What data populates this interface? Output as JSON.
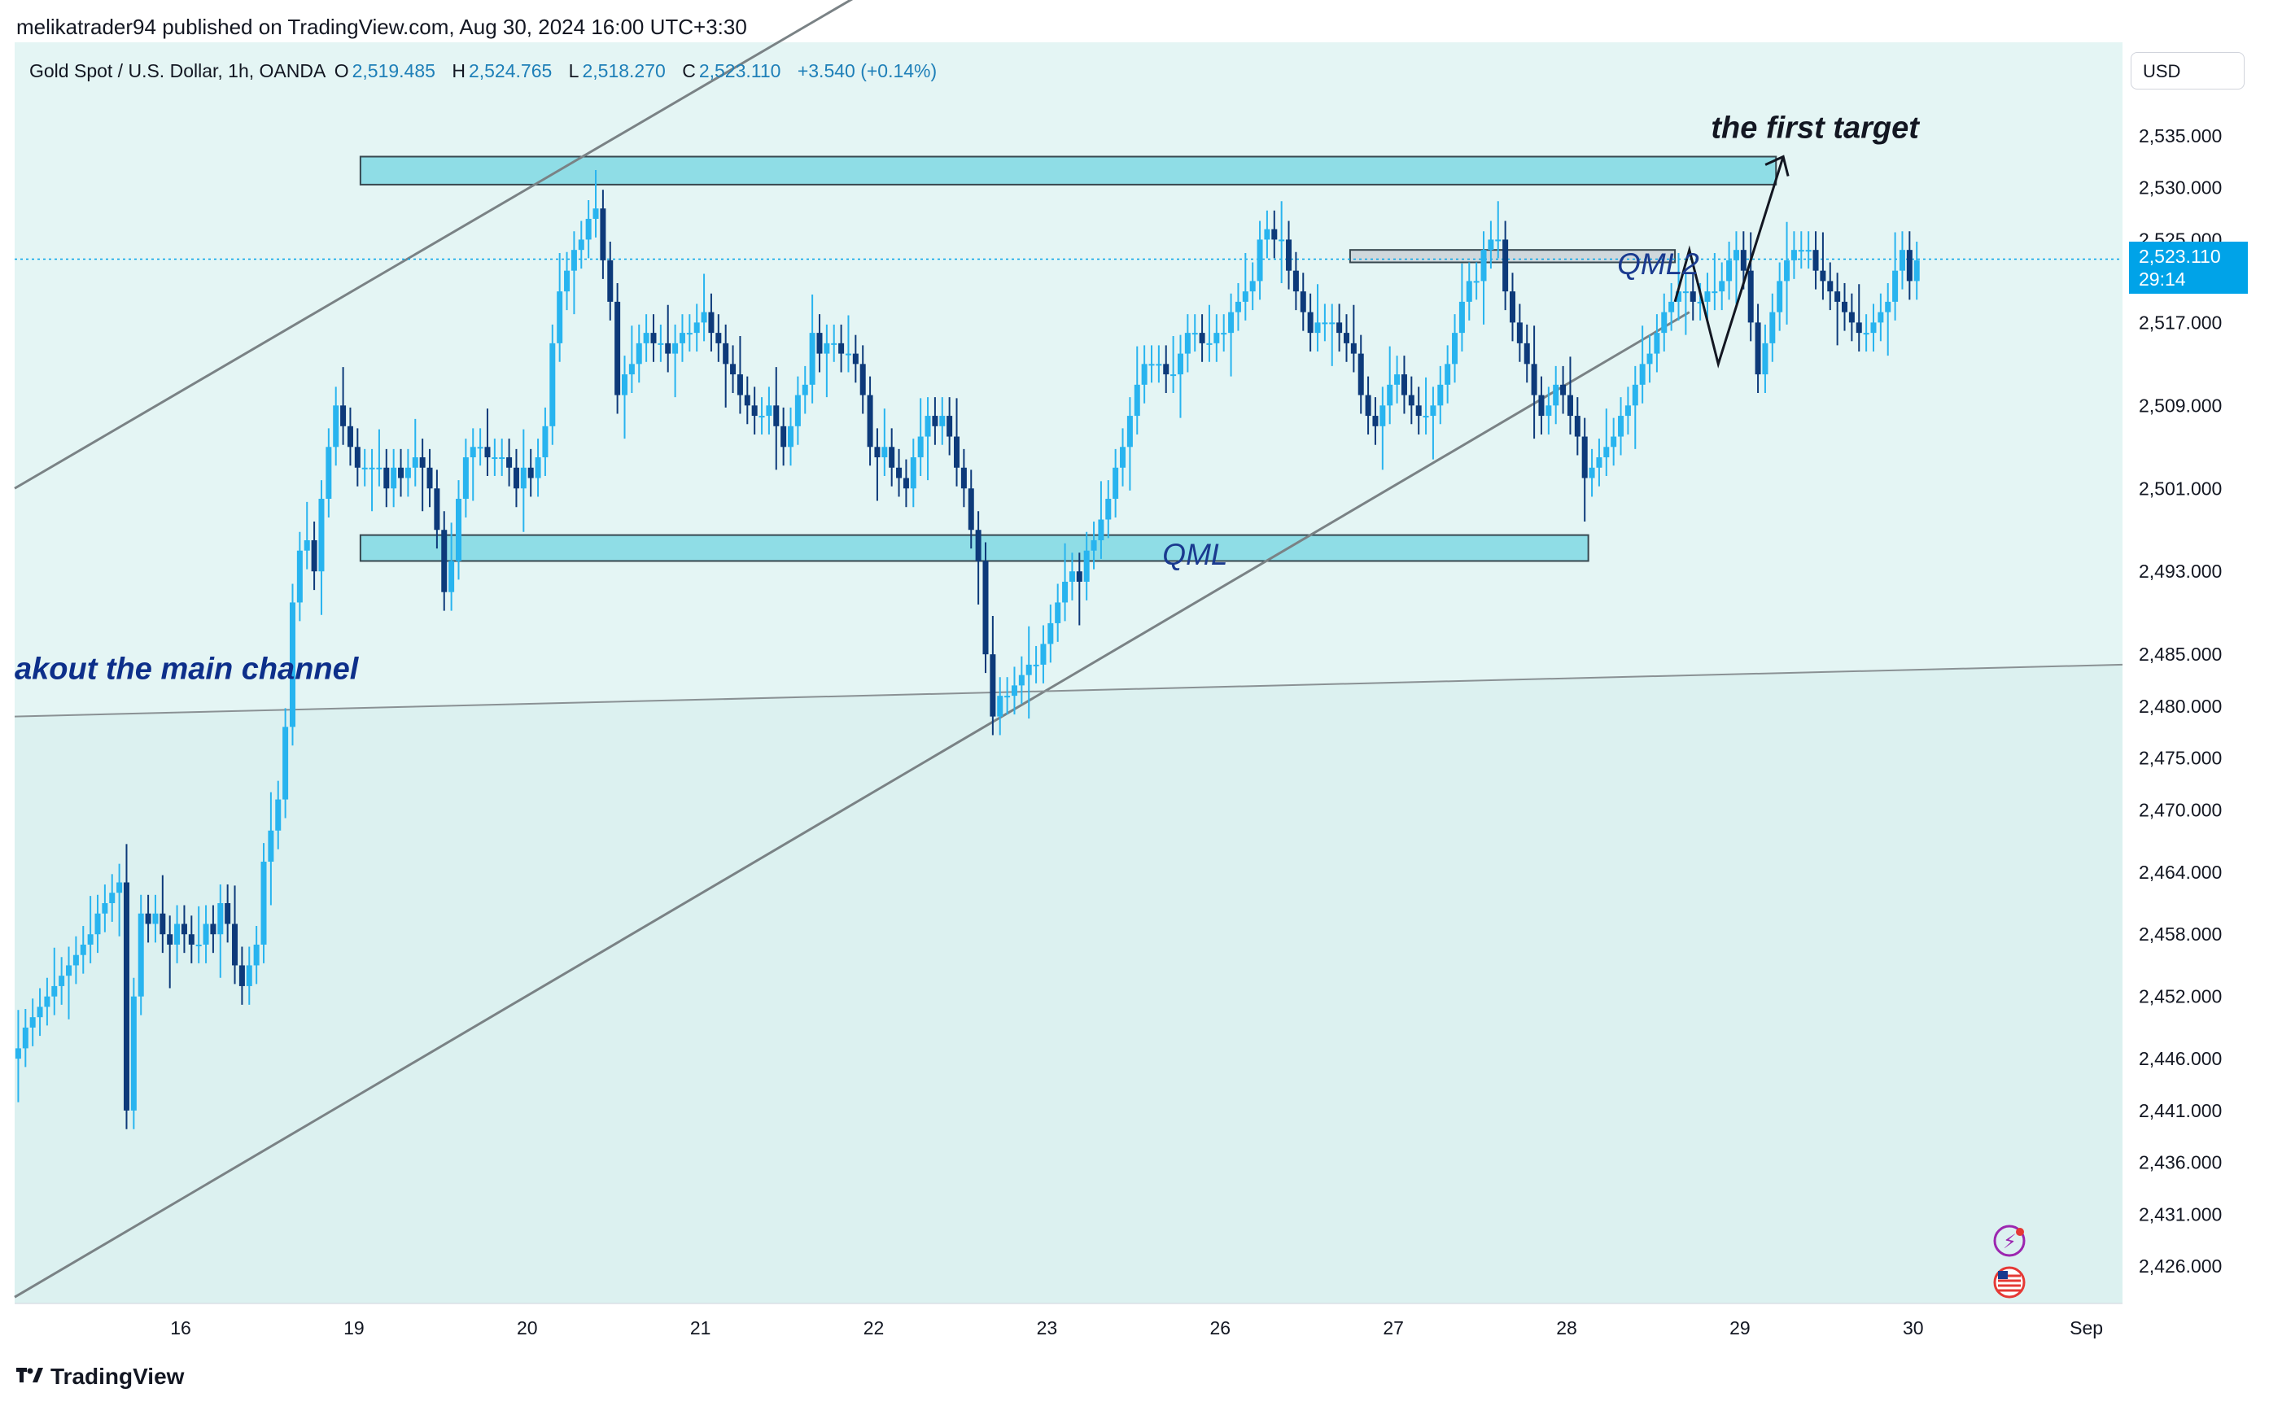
{
  "header": {
    "attribution": "melikatrader94 published on TradingView.com, Aug 30, 2024 16:00 UTC+3:30",
    "symbol": "Gold Spot / U.S. Dollar, 1h, OANDA",
    "open_label": "O",
    "open": "2,519.485",
    "high_label": "H",
    "high": "2,524.765",
    "low_label": "L",
    "low": "2,518.270",
    "close_label": "C",
    "close": "2,523.110",
    "change": "+3.540 (+0.14%)"
  },
  "price_scale": {
    "currency": "USD",
    "last_price": "2,523.110",
    "countdown": "29:14"
  },
  "footer": {
    "brand": "TradingView"
  },
  "colors": {
    "up": "#28b4ef",
    "down": "#0d3a7a",
    "zone": "#8fdde6",
    "background": "#e4f5f4"
  },
  "icons": [
    "flash-icon",
    "us-flag-icon",
    "tradingview-logo-icon"
  ],
  "chart_data": {
    "type": "candlestick",
    "title": "Gold Spot / U.S. Dollar, 1h, OANDA",
    "xlabel": "",
    "ylabel": "",
    "ylim": [
      2421,
      2541
    ],
    "y_ticks": [
      2535,
      2530,
      2525,
      2517,
      2509,
      2501,
      2493,
      2485,
      2480,
      2475,
      2470,
      2464,
      2458,
      2452,
      2446,
      2441,
      2436,
      2431,
      2426
    ],
    "y_tick_labels": [
      "2,535.000",
      "2,530.000",
      "2,525.000",
      "2,517.000",
      "2,509.000",
      "2,501.000",
      "2,493.000",
      "2,485.000",
      "2,480.000",
      "2,475.000",
      "2,470.000",
      "2,464.000",
      "2,458.000",
      "2,452.000",
      "2,446.000",
      "2,441.000",
      "2,436.000",
      "2,431.000",
      "2,426.000"
    ],
    "x_ticks": [
      {
        "label": "16",
        "t": 14
      },
      {
        "label": "19",
        "t": 38
      },
      {
        "label": "20",
        "t": 62
      },
      {
        "label": "21",
        "t": 86
      },
      {
        "label": "22",
        "t": 110
      },
      {
        "label": "23",
        "t": 134
      },
      {
        "label": "26",
        "t": 158
      },
      {
        "label": "27",
        "t": 182
      },
      {
        "label": "28",
        "t": 206
      },
      {
        "label": "29",
        "t": 230
      },
      {
        "label": "30",
        "t": 254
      },
      {
        "label": "Sep",
        "t": 278
      }
    ],
    "t_range": [
      -9,
      283
    ],
    "closes": [
      2447,
      2449,
      2450,
      2451,
      2452,
      2453,
      2454,
      2455,
      2456,
      2457,
      2458,
      2460,
      2461,
      2462,
      2463,
      2441,
      2452,
      2460,
      2459,
      2460,
      2458,
      2457,
      2459,
      2458,
      2457,
      2457,
      2459,
      2458,
      2461,
      2459,
      2455,
      2453,
      2455,
      2457,
      2465,
      2468,
      2471,
      2478,
      2490,
      2495,
      2496,
      2493,
      2500,
      2505,
      2509,
      2507,
      2505,
      2503,
      2503,
      2503,
      2503,
      2501,
      2503,
      2502,
      2503,
      2504,
      2503,
      2501,
      2497,
      2491,
      2494,
      2500,
      2504,
      2505,
      2505,
      2504,
      2504,
      2504,
      2503,
      2501,
      2503,
      2502,
      2504,
      2507,
      2515,
      2520,
      2522,
      2524,
      2525,
      2527,
      2528,
      2523,
      2519,
      2510,
      2512,
      2513,
      2515,
      2516,
      2515,
      2515,
      2514,
      2515,
      2516,
      2516,
      2517,
      2518,
      2516,
      2515,
      2513,
      2512,
      2510,
      2509,
      2508,
      2508,
      2509,
      2507,
      2505,
      2507,
      2510,
      2511,
      2516,
      2514,
      2515,
      2515,
      2514,
      2514,
      2513,
      2510,
      2505,
      2504,
      2505,
      2503,
      2502,
      2501,
      2504,
      2506,
      2508,
      2507,
      2508,
      2506,
      2503,
      2501,
      2497,
      2494,
      2485,
      2479,
      2481,
      2481,
      2482,
      2483,
      2484,
      2484,
      2486,
      2488,
      2490,
      2492,
      2493,
      2492,
      2495,
      2496,
      2498,
      2500,
      2503,
      2505,
      2508,
      2511,
      2513,
      2513,
      2513,
      2512,
      2512,
      2514,
      2516,
      2516,
      2515,
      2515,
      2516,
      2516,
      2518,
      2519,
      2520,
      2521,
      2525,
      2526,
      2525,
      2525,
      2522,
      2520,
      2518,
      2516,
      2517,
      2517,
      2517,
      2516,
      2515,
      2514,
      2510,
      2508,
      2507,
      2509,
      2511,
      2512,
      2510,
      2509,
      2508,
      2508,
      2509,
      2511,
      2513,
      2516,
      2519,
      2521,
      2521,
      2524,
      2525,
      2525,
      2520,
      2517,
      2515,
      2513,
      2510,
      2508,
      2509,
      2511,
      2510,
      2508,
      2506,
      2502,
      2503,
      2504,
      2505,
      2506,
      2508,
      2509,
      2511,
      2513,
      2514,
      2516,
      2518,
      2519,
      2520,
      2520,
      2519,
      2519,
      2520,
      2520,
      2521,
      2523,
      2524,
      2522,
      2517,
      2512,
      2515,
      2518,
      2521,
      2523,
      2524,
      2524,
      2524,
      2522,
      2521,
      2520,
      2519,
      2518,
      2517,
      2516,
      2516,
      2517,
      2518,
      2519,
      2522,
      2524,
      2521,
      2523
    ],
    "zones": [
      {
        "label": "",
        "t0": 9,
        "t1": 283,
        "p0": 2530.3,
        "p1": 2533.0
      },
      {
        "label": "QML",
        "t0": 9,
        "t1": 209,
        "p0": 2494.0,
        "p1": 2496.5
      },
      {
        "label": "QML2",
        "t0": 176,
        "t1": 221,
        "p0": 2522.8,
        "p1": 2524.0
      }
    ],
    "trendlines": [
      {
        "t0": -9,
        "p0": 2501,
        "t1": 109,
        "p1": 2549
      },
      {
        "t0": -9,
        "p0": 2423,
        "t1": 223,
        "p1": 2518
      },
      {
        "t0": -9,
        "p0": 2479,
        "t1": 283,
        "p1": 2484
      }
    ],
    "annotations": [
      {
        "text": "the first target",
        "t": 226,
        "p": 2534.8
      },
      {
        "text": "QML",
        "t": 150,
        "p": 2494.6
      },
      {
        "text": "QML2",
        "t": 213,
        "p": 2522.6
      },
      {
        "text": "akout the main channel",
        "t": -9,
        "p": 2482.6
      }
    ],
    "projection": [
      {
        "t": 221,
        "p": 2519
      },
      {
        "t": 223,
        "p": 2524
      },
      {
        "t": 227,
        "p": 2513
      },
      {
        "t": 236,
        "p": 2533
      }
    ]
  }
}
